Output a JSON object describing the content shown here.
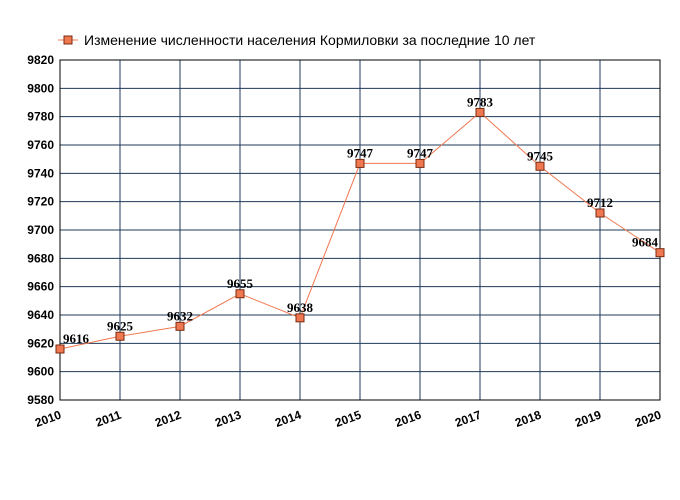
{
  "chart_data": {
    "type": "line",
    "title": "",
    "xlabel": "",
    "ylabel": "",
    "x": [
      "2010",
      "2011",
      "2012",
      "2013",
      "2014",
      "2015",
      "2016",
      "2017",
      "2018",
      "2019",
      "2020"
    ],
    "series": [
      {
        "name": "Изменение численности населения Кормиловки за последние 10 лет",
        "values": [
          9616,
          9625,
          9632,
          9655,
          9638,
          9747,
          9747,
          9783,
          9745,
          9712,
          9684
        ],
        "color": "#f07850",
        "marker_fill": "#f07850",
        "marker_stroke": "#7a2a10"
      }
    ],
    "ylim": [
      9580,
      9820
    ],
    "yticks": [
      9580,
      9600,
      9620,
      9640,
      9660,
      9680,
      9700,
      9720,
      9740,
      9760,
      9780,
      9800,
      9820
    ],
    "grid": true,
    "grid_color": "#1f3a5a",
    "legend_position": "top"
  }
}
